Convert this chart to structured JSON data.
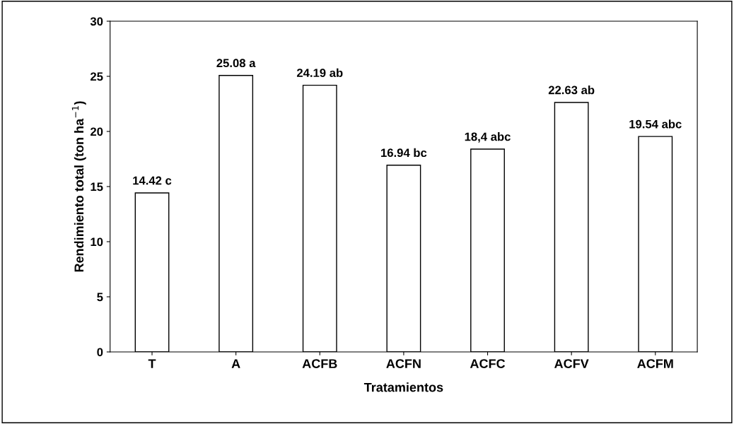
{
  "chart_data": {
    "type": "bar",
    "xlabel": "Tratamientos",
    "ylabel": "Rendimiento total (ton ha$^{−1}$)",
    "categories": [
      "T",
      "A",
      "ACFB",
      "ACFN",
      "ACFC",
      "ACFV",
      "ACFM"
    ],
    "values": [
      14.42,
      25.08,
      24.19,
      16.94,
      18.4,
      22.63,
      19.54
    ],
    "value_labels": [
      "14.42 c",
      "25.08 a",
      "24.19 ab",
      "16.94 bc",
      "18,4 abc",
      "22.63 ab",
      "19.54 abc"
    ],
    "color": "#ffffff",
    "ylim": [
      0,
      30
    ],
    "yticks": [
      0,
      5,
      10,
      15,
      20,
      25,
      30
    ],
    "grid": false,
    "legend": false
  }
}
